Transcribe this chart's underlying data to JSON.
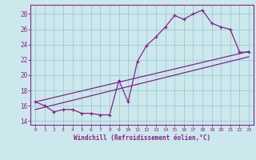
{
  "xlabel": "Windchill (Refroidissement éolien,°C)",
  "bg_color": "#cce8ec",
  "grid_color": "#99ccd4",
  "line_color": "#882288",
  "xlim": [
    -0.5,
    23.5
  ],
  "ylim": [
    13.5,
    29.2
  ],
  "xticks": [
    0,
    1,
    2,
    3,
    4,
    5,
    6,
    7,
    8,
    9,
    10,
    11,
    12,
    13,
    14,
    15,
    16,
    17,
    18,
    19,
    20,
    21,
    22,
    23
  ],
  "yticks": [
    14,
    16,
    18,
    20,
    22,
    24,
    26,
    28
  ],
  "curve1_x": [
    0,
    1,
    2,
    3,
    4,
    5,
    6,
    7,
    8,
    9,
    10,
    11,
    12,
    13,
    14,
    15,
    16,
    17,
    18,
    19,
    20,
    21,
    22,
    23
  ],
  "curve1_y": [
    16.5,
    16.0,
    15.2,
    15.5,
    15.5,
    15.0,
    15.0,
    14.8,
    14.8,
    19.3,
    16.5,
    21.8,
    23.9,
    25.0,
    26.3,
    27.8,
    27.3,
    28.0,
    28.5,
    26.8,
    26.3,
    26.0,
    23.0,
    23.0
  ],
  "line2_x": [
    0,
    23
  ],
  "line2_y": [
    16.5,
    23.1
  ],
  "line3_x": [
    0,
    23
  ],
  "line3_y": [
    15.5,
    22.4
  ]
}
